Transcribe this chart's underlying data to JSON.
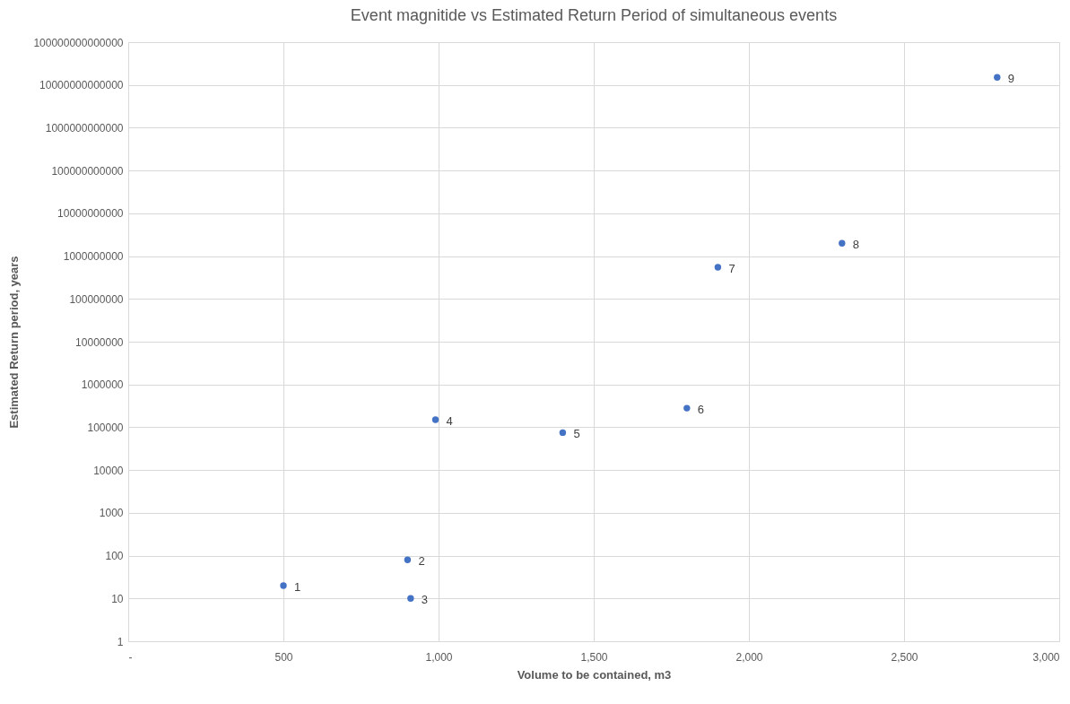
{
  "chart_data": {
    "type": "scatter",
    "title": "Event magnitide vs Estimated Return Period of simultaneous events",
    "xlabel": "Volume to be contained, m3",
    "ylabel": "Estimated Return period, years",
    "x": [
      500,
      900,
      910,
      990,
      1400,
      1800,
      1900,
      2300,
      2800
    ],
    "series": [
      {
        "color": "#4472c4",
        "values": [
          20,
          80,
          10,
          150000,
          75000,
          280000,
          550000000,
          2000000000,
          15000000000000
        ]
      }
    ],
    "xlim": [
      0,
      3000
    ],
    "xticks": [
      {
        "value": 0,
        "label": "-"
      },
      500,
      {
        "value": 1000,
        "label": "1,000"
      },
      {
        "value": 1500,
        "label": "1,500"
      },
      {
        "value": 2000,
        "label": "2,000"
      },
      {
        "value": 2500,
        "label": "2,500"
      },
      {
        "value": 3000,
        "label": "3,000"
      }
    ],
    "ylim": [
      1,
      100000000000000
    ],
    "yticks": [
      1,
      10,
      100,
      1000,
      10000,
      100000,
      1000000,
      10000000,
      100000000,
      1000000000,
      10000000000,
      100000000000,
      1000000000000,
      10000000000000,
      100000000000000
    ],
    "log": "y",
    "grid": true,
    "marker": "circle",
    "annotations": [
      {
        "text": "1",
        "x": 500,
        "y": 20
      },
      {
        "text": "2",
        "x": 900,
        "y": 80
      },
      {
        "text": "3",
        "x": 910,
        "y": 10
      },
      {
        "text": "4",
        "x": 990,
        "y": 150000
      },
      {
        "text": "5",
        "x": 1400,
        "y": 75000
      },
      {
        "text": "6",
        "x": 1800,
        "y": 280000
      },
      {
        "text": "7",
        "x": 1900,
        "y": 550000000
      },
      {
        "text": "8",
        "x": 2300,
        "y": 2000000000
      },
      {
        "text": "9",
        "x": 2800,
        "y": 15000000000000
      }
    ]
  }
}
